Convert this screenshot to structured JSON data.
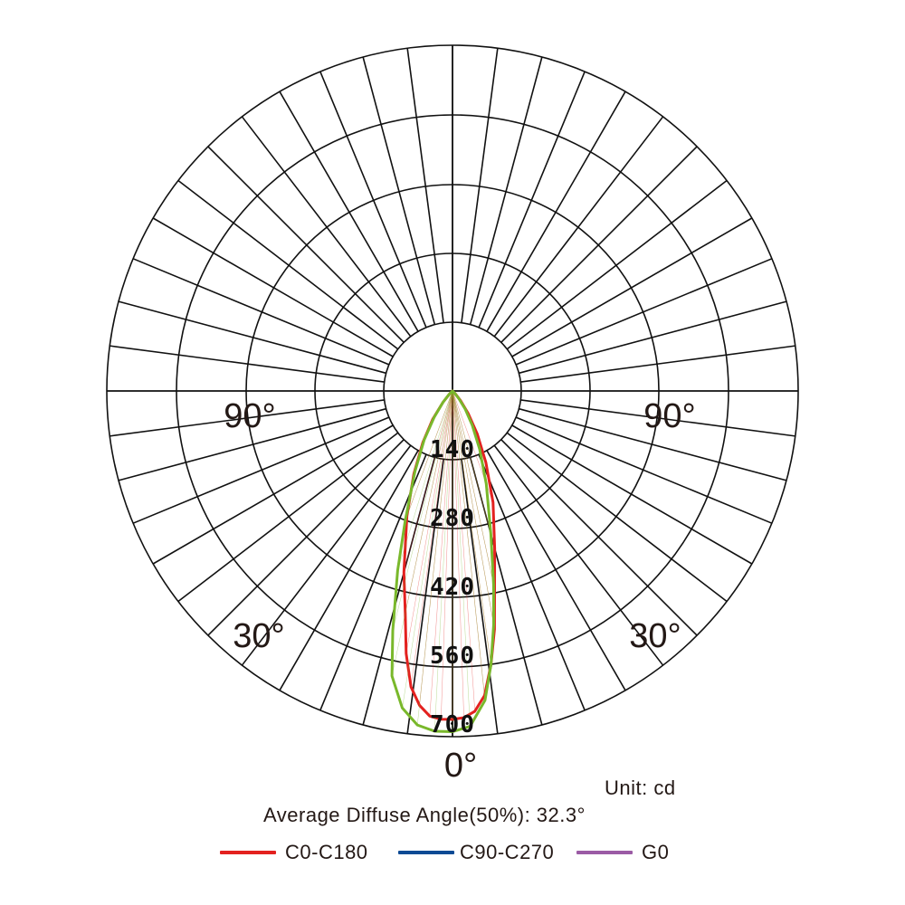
{
  "chart_data": {
    "type": "polar",
    "unit_text": "Unit: cd",
    "average_angle_text": "Average Diffuse Angle(50%): 32.3°",
    "radial_ticks": [
      "140",
      "280",
      "420",
      "560",
      "700"
    ],
    "radial_max": 700,
    "angle_labels": {
      "bottom": "0°",
      "lower_left": "30°",
      "lower_right": "30°",
      "left": "90°",
      "right": "90°"
    },
    "grid_spoke_step_deg": 7.5,
    "series": [
      {
        "name": "C0-C180",
        "color": "#e3211f",
        "points": [
          [
            -60,
            0
          ],
          [
            -45,
            8
          ],
          [
            -40,
            30
          ],
          [
            -35,
            70
          ],
          [
            -30,
            120
          ],
          [
            -25,
            185
          ],
          [
            -20,
            270
          ],
          [
            -15,
            380
          ],
          [
            -12,
            460
          ],
          [
            -10,
            540
          ],
          [
            -8,
            605
          ],
          [
            -6,
            640
          ],
          [
            -4,
            660
          ],
          [
            -2,
            665
          ],
          [
            0,
            665
          ],
          [
            2,
            662
          ],
          [
            4,
            650
          ],
          [
            6,
            620
          ],
          [
            8,
            560
          ],
          [
            10,
            490
          ],
          [
            12,
            410
          ],
          [
            15,
            330
          ],
          [
            20,
            240
          ],
          [
            25,
            160
          ],
          [
            30,
            100
          ],
          [
            35,
            55
          ],
          [
            40,
            25
          ],
          [
            45,
            8
          ],
          [
            60,
            0
          ]
        ]
      },
      {
        "name": "C90-C270",
        "color": "#0b4a94",
        "points": []
      },
      {
        "name": "G0",
        "color": "#9b5ba5",
        "points": []
      },
      {
        "name": "",
        "color": "#79b82b",
        "points": [
          [
            -60,
            0
          ],
          [
            -45,
            10
          ],
          [
            -40,
            30
          ],
          [
            -35,
            65
          ],
          [
            -30,
            115
          ],
          [
            -25,
            180
          ],
          [
            -20,
            280
          ],
          [
            -17,
            380
          ],
          [
            -14,
            500
          ],
          [
            -12,
            590
          ],
          [
            -9,
            650
          ],
          [
            -6,
            680
          ],
          [
            -3,
            690
          ],
          [
            0,
            690
          ],
          [
            3,
            680
          ],
          [
            6,
            630
          ],
          [
            8,
            560
          ],
          [
            10,
            480
          ],
          [
            12,
            400
          ],
          [
            15,
            300
          ],
          [
            20,
            200
          ],
          [
            25,
            130
          ],
          [
            30,
            80
          ],
          [
            35,
            45
          ],
          [
            40,
            20
          ],
          [
            45,
            6
          ],
          [
            60,
            0
          ]
        ]
      }
    ],
    "legend": [
      {
        "label": "C0-C180",
        "color": "#e3211f"
      },
      {
        "label": "C90-C270",
        "color": "#0b4a94"
      },
      {
        "label": "G0",
        "color": "#9b5ba5"
      }
    ]
  }
}
